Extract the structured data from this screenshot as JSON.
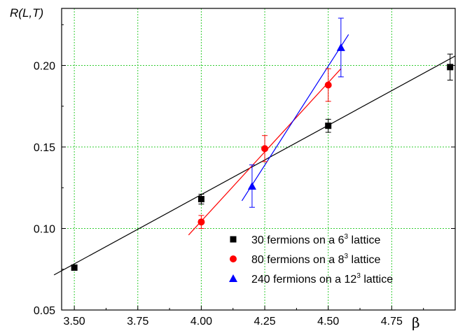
{
  "chart_data": {
    "type": "scatter",
    "ylabel": "R(L,T)",
    "xlabel": "β",
    "xlim": [
      3.45,
      5.0
    ],
    "ylim": [
      0.05,
      0.235
    ],
    "xticks": [
      "3.50",
      "3.75",
      "4.00",
      "4.25",
      "4.50",
      "4.75"
    ],
    "yticks": [
      "0.05",
      "0.10",
      "0.15",
      "0.20"
    ],
    "grid": true,
    "grid_color": "#33cc33",
    "legend_position": "bottom-right",
    "series": [
      {
        "name": "30 fermions on a 6",
        "sup": "3",
        "suffix": " lattice",
        "marker": "square",
        "color": "#000000",
        "points": [
          {
            "x": 3.5,
            "y": 0.076,
            "err": 0.0
          },
          {
            "x": 4.0,
            "y": 0.118,
            "err": 0.003
          },
          {
            "x": 4.5,
            "y": 0.163,
            "err": 0.004
          },
          {
            "x": 4.98,
            "y": 0.199,
            "err": 0.008
          }
        ],
        "fit": [
          [
            3.42,
            0.0715
          ],
          [
            5.0,
            0.2058
          ]
        ]
      },
      {
        "name": "80 fermions on a 8",
        "sup": "3",
        "suffix": " lattice",
        "marker": "circle",
        "color": "#ff0000",
        "points": [
          {
            "x": 4.0,
            "y": 0.104,
            "err": 0.004
          },
          {
            "x": 4.25,
            "y": 0.149,
            "err": 0.008
          },
          {
            "x": 4.5,
            "y": 0.188,
            "err": 0.01
          }
        ],
        "fit": [
          [
            3.95,
            0.096
          ],
          [
            4.55,
            0.198
          ]
        ]
      },
      {
        "name": "240 fermions on a 12",
        "sup": "3",
        "suffix": " lattice",
        "marker": "triangle",
        "color": "#0000ff",
        "points": [
          {
            "x": 4.2,
            "y": 0.126,
            "err": 0.013
          },
          {
            "x": 4.55,
            "y": 0.211,
            "err": 0.018
          }
        ],
        "fit": [
          [
            4.16,
            0.117
          ],
          [
            4.58,
            0.219
          ]
        ]
      }
    ]
  }
}
